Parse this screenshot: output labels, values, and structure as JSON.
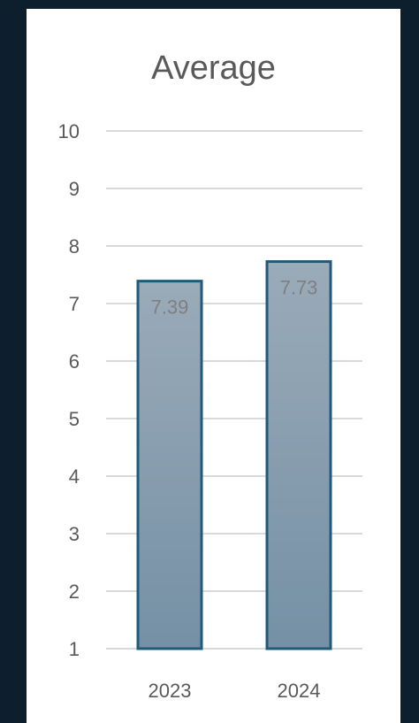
{
  "chart_data": {
    "type": "bar",
    "title": "Average",
    "categories": [
      "2023",
      "2024"
    ],
    "values": [
      7.39,
      7.73
    ],
    "data_labels": [
      "7.39",
      "7.73"
    ],
    "ylim": [
      1,
      10
    ],
    "yticks": [
      1,
      2,
      3,
      4,
      5,
      6,
      7,
      8,
      9,
      10
    ],
    "ytick_labels": [
      "1",
      "2",
      "3",
      "4",
      "5",
      "6",
      "7",
      "8",
      "9",
      "10"
    ],
    "xlabel": "",
    "ylabel": "",
    "grid": "horizontal",
    "legend": "none",
    "colors": {
      "bar_top": "#9aabb9",
      "bar_bottom": "#7590a5",
      "bar_border": "#1f5a7a",
      "grid": "#d9d9d9",
      "background": "#ffffff",
      "page_background": "#0d1f2d"
    }
  }
}
